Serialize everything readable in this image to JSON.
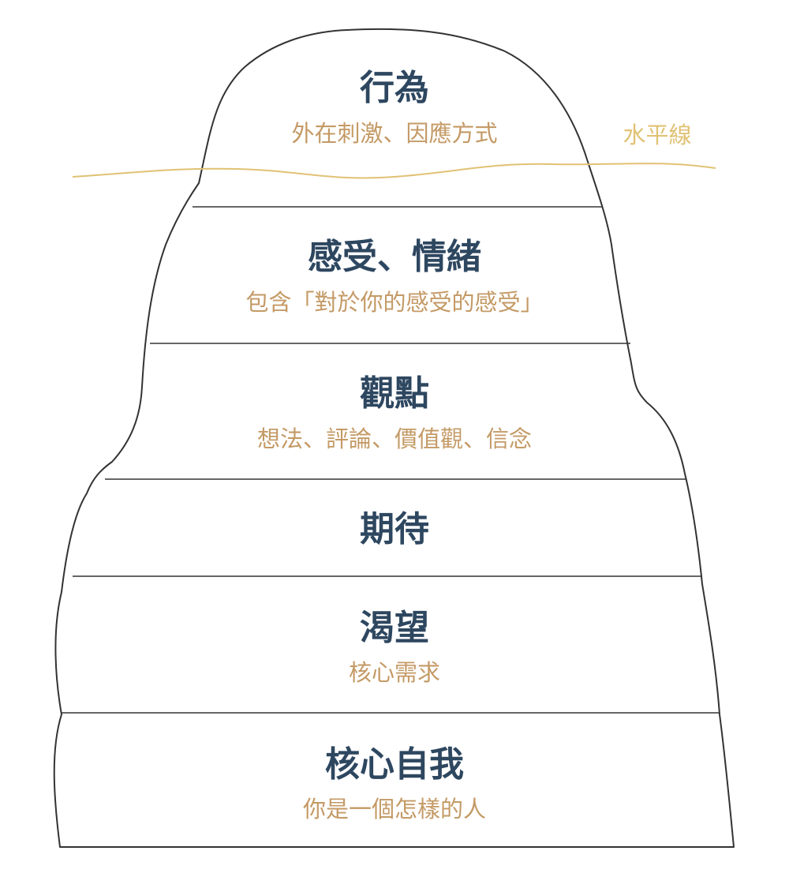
{
  "colors": {
    "title": "#2e4760",
    "subtitle": "#c49a66",
    "waterline": "#e0c274",
    "outline": "#333333"
  },
  "waterline": {
    "label": "水平線"
  },
  "layers": [
    {
      "title": "行為",
      "subtitle": "外在刺激、因應方式"
    },
    {
      "title": "感受、情緒",
      "subtitle": "包含「對於你的感受的感受」"
    },
    {
      "title": "觀點",
      "subtitle": "想法、評論、價值觀、信念"
    },
    {
      "title": "期待",
      "subtitle": ""
    },
    {
      "title": "渴望",
      "subtitle": "核心需求"
    },
    {
      "title": "核心自我",
      "subtitle": "你是一個怎樣的人"
    }
  ]
}
